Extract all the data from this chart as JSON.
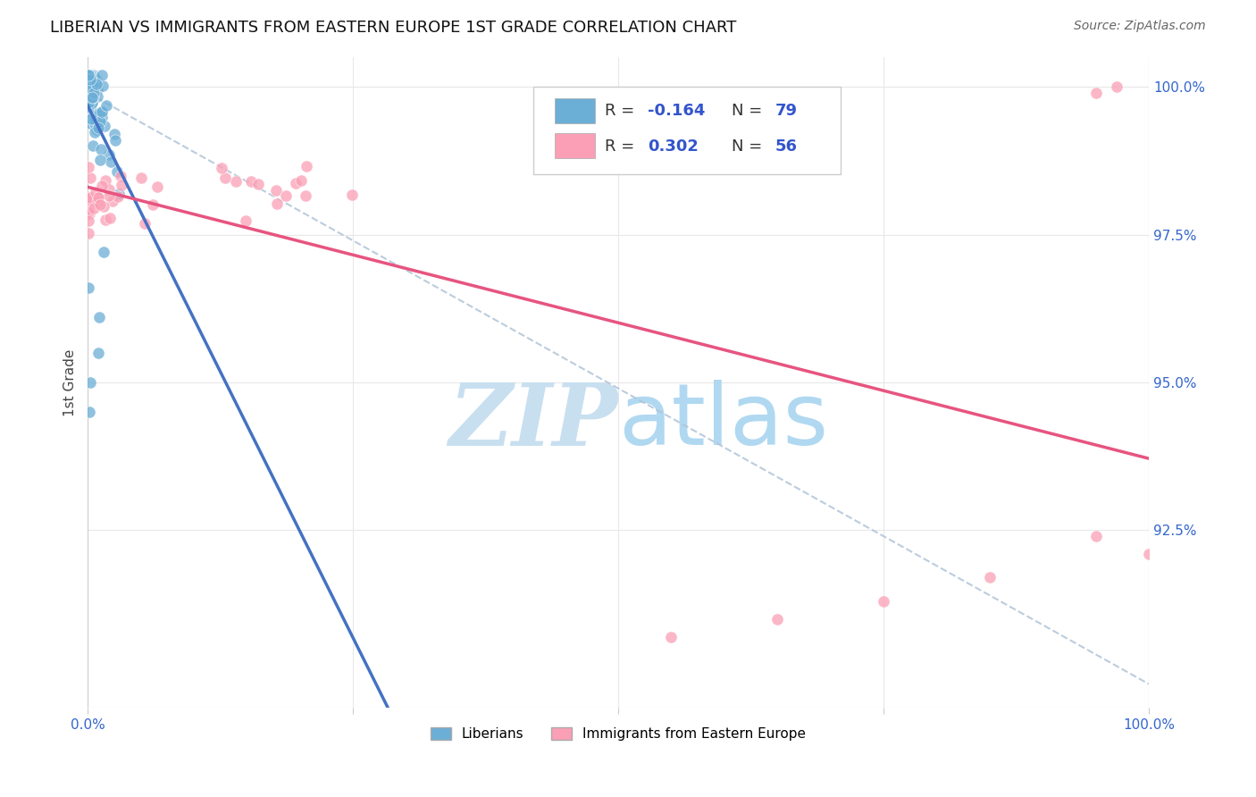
{
  "title": "LIBERIAN VS IMMIGRANTS FROM EASTERN EUROPE 1ST GRADE CORRELATION CHART",
  "source": "Source: ZipAtlas.com",
  "ylabel": "1st Grade",
  "legend_label1": "Liberians",
  "legend_label2": "Immigrants from Eastern Europe",
  "color_blue": "#6baed6",
  "color_pink": "#fa9fb5",
  "color_blue_line": "#4472c4",
  "color_pink_line": "#e75480",
  "color_dash": "#b0c4d8",
  "watermark_zip_color": "#c8dff0",
  "watermark_atlas_color": "#a8d4f0",
  "x_min": 0.0,
  "x_max": 1.0,
  "y_min": 0.895,
  "y_max": 1.005,
  "blue_R": -0.164,
  "blue_N": 79,
  "pink_R": 0.302,
  "pink_N": 56,
  "y_ticks": [
    0.925,
    0.95,
    0.975,
    1.0
  ],
  "y_tick_labels": [
    "92.5%",
    "95.0%",
    "97.5%",
    "100.0%"
  ],
  "x_ticks": [
    0.0,
    0.25,
    0.5,
    0.75,
    1.0
  ],
  "x_tick_labels": [
    "0.0%",
    "",
    "",
    "",
    "100.0%"
  ]
}
